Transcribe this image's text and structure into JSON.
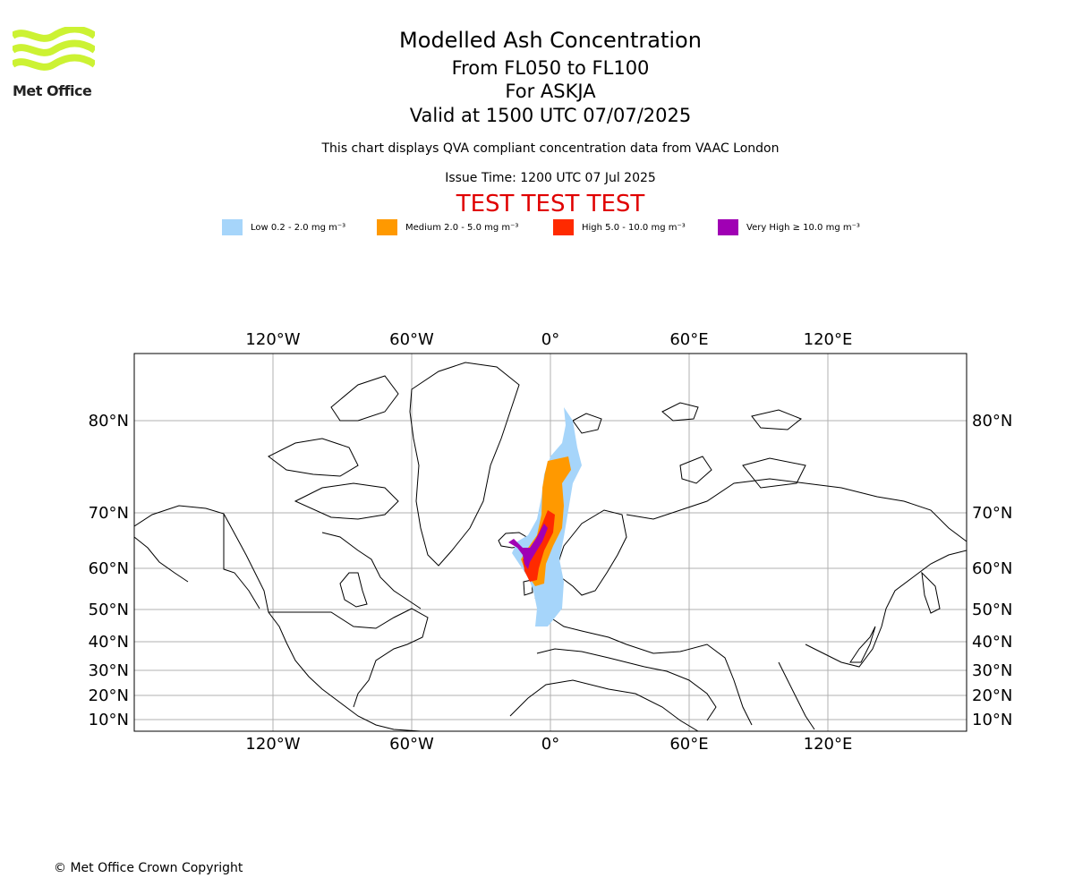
{
  "header": {
    "title": "Modelled Ash Concentration",
    "levels": "From FL050 to FL100",
    "volcano": "For ASKJA",
    "valid": "Valid at 1500 UTC 07/07/2025",
    "note": "This chart displays QVA compliant concentration data from VAAC London",
    "issue_time": "Issue Time: 1200 UTC 07 Jul 2025",
    "test_banner": "TEST TEST TEST"
  },
  "logo": {
    "text": "Met Office",
    "color": "#ccf233"
  },
  "legend": [
    {
      "label": "Low 0.2 - 2.0 mg m⁻³",
      "color": "#a6d5fa"
    },
    {
      "label": "Medium 2.0 - 5.0 mg m⁻³",
      "color": "#ff9900"
    },
    {
      "label": "High 5.0 - 10.0 mg m⁻³",
      "color": "#ff2a00"
    },
    {
      "label": "Very High ≥ 10.0 mg m⁻³",
      "color": "#a000b4"
    }
  ],
  "map": {
    "projection": "mercator",
    "lon_range": [
      -180,
      180
    ],
    "lat_range": [
      5,
      88
    ],
    "lon_ticks": [
      "120°W",
      "60°W",
      "0°",
      "60°E",
      "120°E"
    ],
    "lat_ticks": [
      "80°N",
      "70°N",
      "60°N",
      "50°N",
      "40°N",
      "30°N",
      "20°N",
      "10°N"
    ],
    "gridlines": true
  },
  "footer": {
    "copyright": "© Met Office Crown Copyright"
  }
}
